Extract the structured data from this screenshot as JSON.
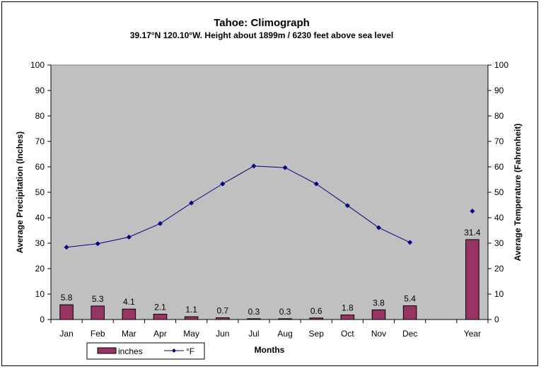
{
  "chart_data": {
    "type": "bar",
    "title": "Tahoe: Climograph",
    "subtitle": "39.17°N 120.10°W. Height about 1899m / 6230 feet above sea level",
    "xlabel": "Months",
    "ylabel": "Average Precipitation (Inches)",
    "y2label": "Average Temperature (Fahrenheit)",
    "categories": [
      "Jan",
      "Feb",
      "Mar",
      "Apr",
      "May",
      "Jun",
      "Jul",
      "Aug",
      "Sep",
      "Oct",
      "Nov",
      "Dec",
      "",
      "Year"
    ],
    "ylim": [
      0,
      100
    ],
    "y2lim": [
      0,
      100
    ],
    "yticks": [
      0,
      10,
      20,
      30,
      40,
      50,
      60,
      70,
      80,
      90,
      100
    ],
    "grid": false,
    "legend_position": "bottom-left",
    "series": [
      {
        "name": "inches",
        "type": "bar",
        "axis": "left",
        "color": "#993366",
        "values": [
          5.8,
          5.3,
          4.1,
          2.1,
          1.1,
          0.7,
          0.3,
          0.3,
          0.6,
          1.8,
          3.8,
          5.4,
          null,
          31.4
        ],
        "labels": [
          "5.8",
          "5.3",
          "4.1",
          "2.1",
          "1.1",
          "0.7",
          "0.3",
          "0.3",
          "0.6",
          "1.8",
          "3.8",
          "5.4",
          "",
          "31.4"
        ]
      },
      {
        "name": "°F",
        "type": "line",
        "axis": "right",
        "color": "#000080",
        "values": [
          28.4,
          29.8,
          32.4,
          37.7,
          45.8,
          53.3,
          60.3,
          59.7,
          53.3,
          44.8,
          36.1,
          30.3,
          null,
          42.6
        ],
        "connect_until": 11
      }
    ],
    "plot_background": "#c0c0c0"
  }
}
